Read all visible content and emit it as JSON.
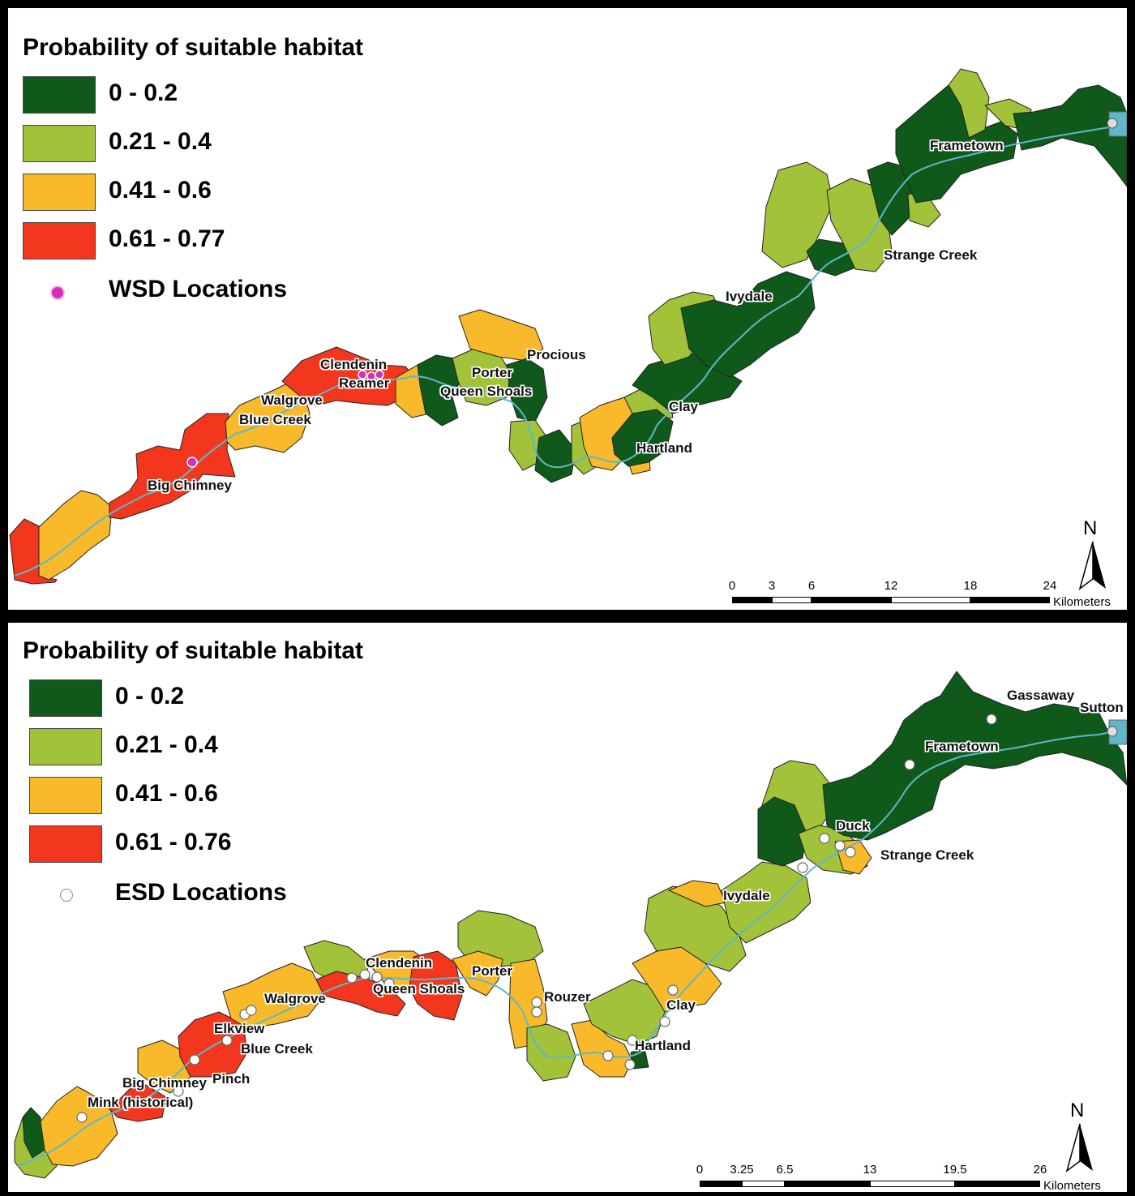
{
  "colors": {
    "class1": "#0f5a1a",
    "class2": "#a2c23a",
    "class3": "#f8b92a",
    "class4": "#f2371e",
    "river": "#5fb7c9",
    "wsd": "#d62fb4",
    "esd": "#ffffff"
  },
  "maps": [
    {
      "legend": {
        "title": "Probability of suitable habitat",
        "classes": [
          {
            "label": "0 - 0.2",
            "color": "#0f5a1a"
          },
          {
            "label": "0.21 - 0.4",
            "color": "#a2c23a"
          },
          {
            "label": "0.41 - 0.6",
            "color": "#f8b92a"
          },
          {
            "label": "0.61 - 0.77",
            "color": "#f2371e"
          }
        ],
        "locations_label": "WSD Locations",
        "locations_icon": "magenta-dot-icon"
      },
      "places": [
        "Frametown",
        "Strange Creek",
        "Ivydale",
        "Procious",
        "Clendenin",
        "Reamer",
        "Porter",
        "Queen Shoals",
        "Walgrove",
        "Blue Creek",
        "Clay",
        "Hartland",
        "Big Chimney"
      ],
      "scale": {
        "ticks": [
          "0",
          "3",
          "6",
          "12",
          "18",
          "24"
        ],
        "unit": "Kilometers"
      },
      "north": "N"
    },
    {
      "legend": {
        "title": "Probability of suitable habitat",
        "classes": [
          {
            "label": "0 - 0.2",
            "color": "#0f5a1a"
          },
          {
            "label": "0.21 - 0.4",
            "color": "#a2c23a"
          },
          {
            "label": "0.41 - 0.6",
            "color": "#f8b92a"
          },
          {
            "label": "0.61 - 0.76",
            "color": "#f2371e"
          }
        ],
        "locations_label": "ESD Locations",
        "locations_icon": "white-dot-icon"
      },
      "places": [
        "Gassaway",
        "Sutton",
        "Frametown",
        "Duck",
        "Strange Creek",
        "Ivydale",
        "Clendenin",
        "Queen Shoals",
        "Porter",
        "Rouzer",
        "Walgrove",
        "Clay",
        "Elkview",
        "Blue Creek",
        "Hartland",
        "Big Chimney",
        "Pinch",
        "Mink (historical)"
      ],
      "scale": {
        "ticks": [
          "0",
          "3.25",
          "6.5",
          "13",
          "19.5",
          "26"
        ],
        "unit": "Kilometers"
      },
      "north": "N"
    }
  ]
}
